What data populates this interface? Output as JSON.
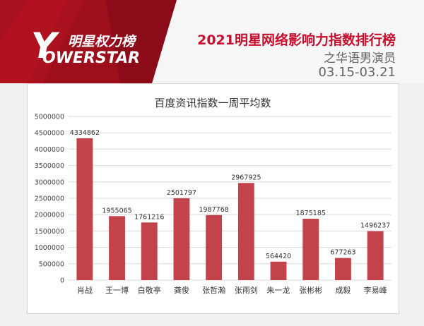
{
  "header": {
    "logo_cn": "明星权力榜",
    "logo_en": "OWERSTAR",
    "logo_y": "Y",
    "title": "2021明星网络影响力指数排行榜",
    "subtitle": "之华语男演员",
    "date_range": "03.15-03.21"
  },
  "colors": {
    "bar": "#c2434a",
    "brand_red": "#c8102e",
    "grid": "#d9d9d9"
  },
  "chart_data": {
    "type": "bar",
    "title": "百度资讯指数一周平均数",
    "xlabel": "",
    "ylabel": "",
    "categories": [
      "肖战",
      "王一博",
      "白敬亭",
      "龚俊",
      "张哲瀚",
      "张雨剑",
      "朱一龙",
      "张彬彬",
      "成毅",
      "李易峰"
    ],
    "values": [
      4334862,
      1955065,
      1761216,
      2501797,
      1987768,
      2967925,
      564420,
      1875185,
      677263,
      1496237
    ],
    "ylim": [
      0,
      5000000
    ],
    "yticks": [
      0,
      500000,
      1000000,
      1500000,
      2000000,
      2500000,
      3000000,
      3500000,
      4000000,
      4500000,
      5000000
    ],
    "grid": true,
    "legend": "none"
  }
}
